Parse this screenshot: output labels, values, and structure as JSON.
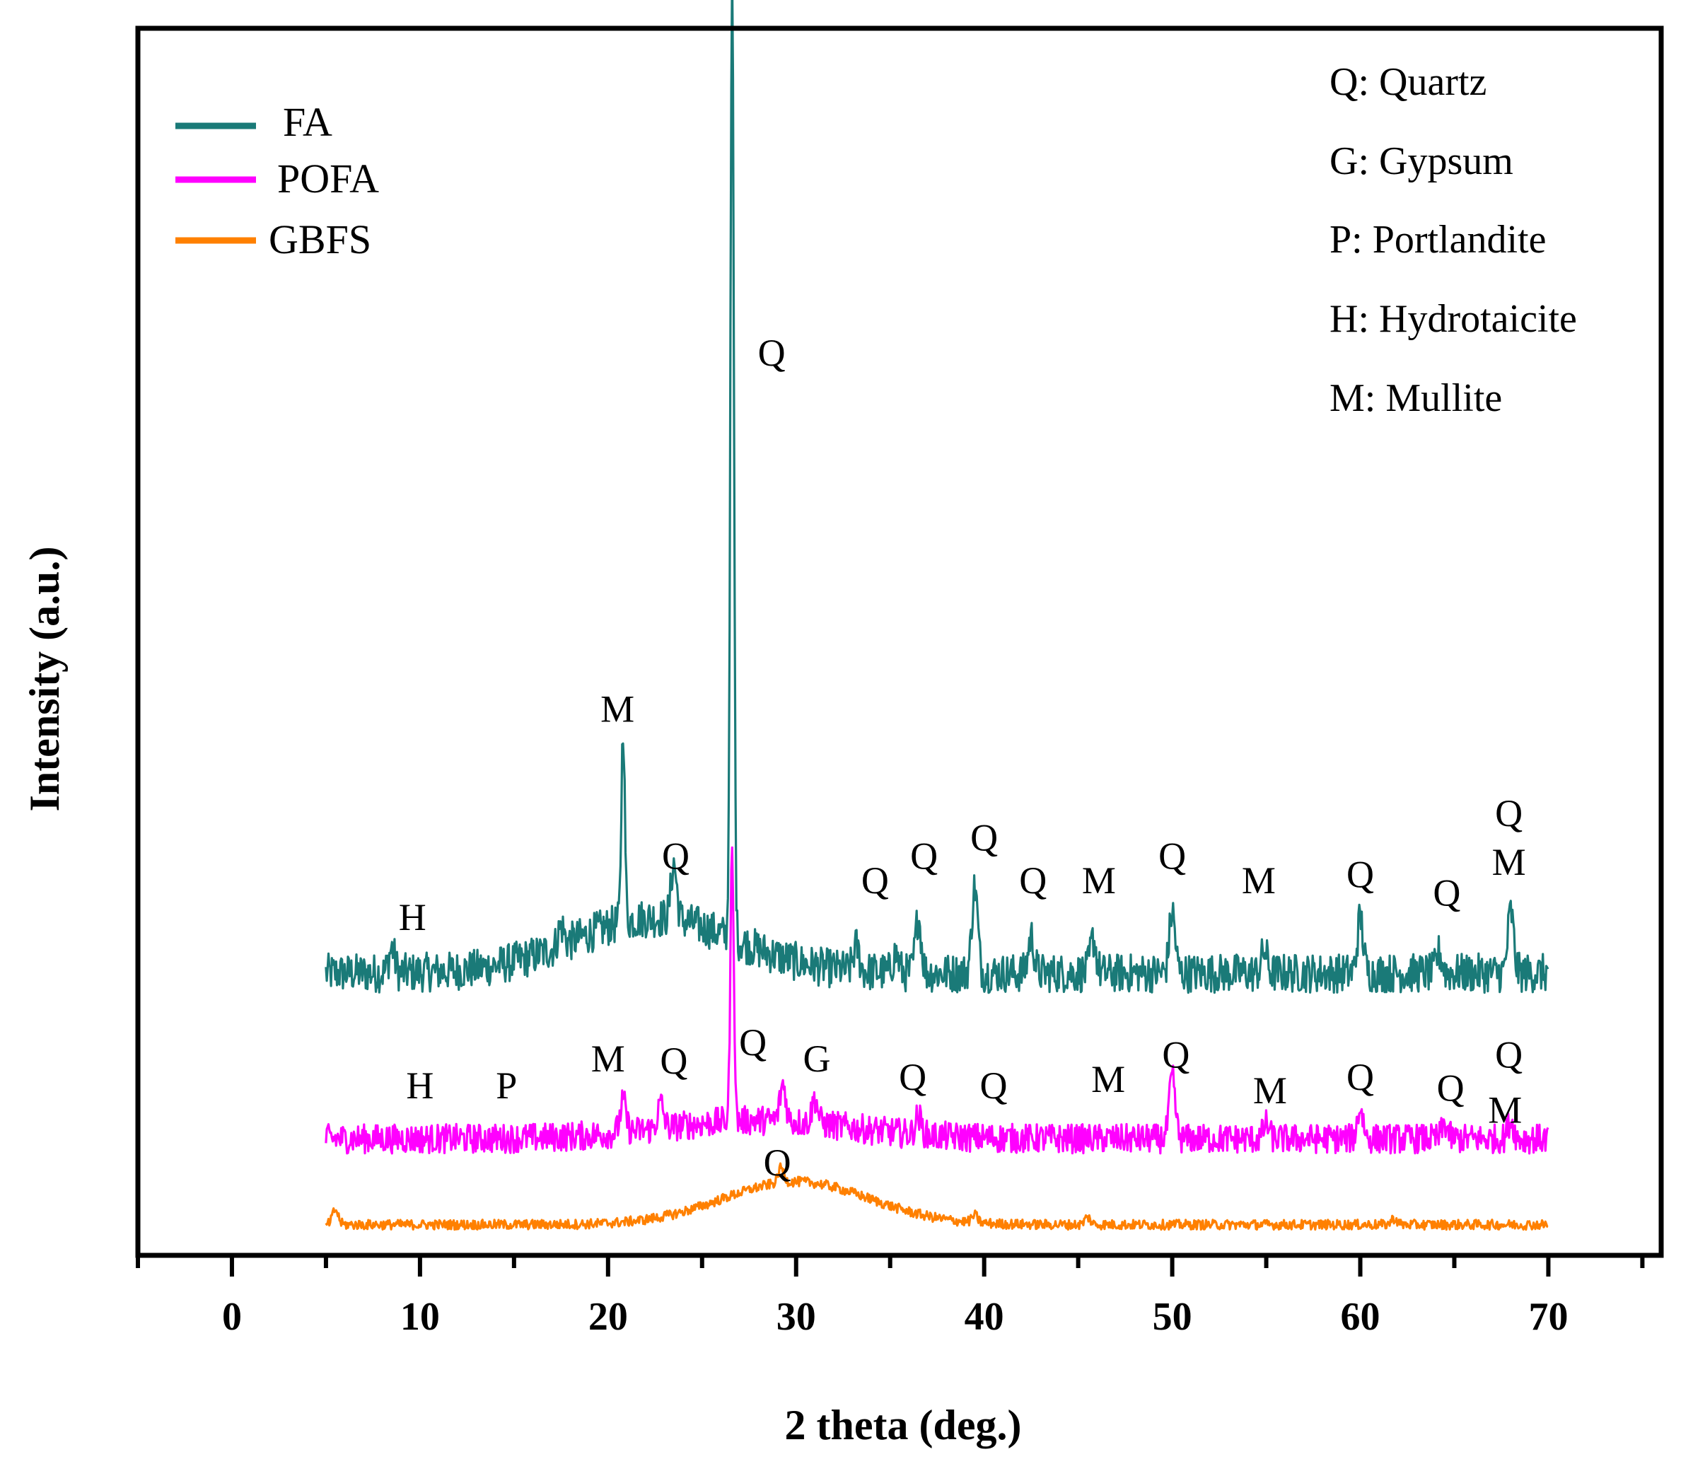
{
  "chart_data": {
    "type": "line",
    "title": "",
    "xlabel": "2 theta (deg.)",
    "ylabel": "Intensity (a.u.)",
    "xlim": [
      -5,
      76
    ],
    "ylim": [
      0,
      100
    ],
    "x_ticks": [
      "0",
      "10",
      "20",
      "30",
      "40",
      "50",
      "60",
      "70"
    ],
    "x_tick_values": [
      0,
      10,
      20,
      30,
      40,
      50,
      60,
      70
    ],
    "grid": false,
    "legend_position": "top-left",
    "series": [
      {
        "name": "FA",
        "color": "#1a7a78",
        "baseline": 23,
        "peaks": [
          {
            "x": 8.5,
            "h": 2.0
          },
          {
            "x": 17.5,
            "h": 1.6
          },
          {
            "x": 20.8,
            "h": 16.0
          },
          {
            "x": 23.5,
            "h": 4.5
          },
          {
            "x": 26.6,
            "h": 78.0
          },
          {
            "x": 33.2,
            "h": 2.0
          },
          {
            "x": 35.3,
            "h": 1.5
          },
          {
            "x": 36.5,
            "h": 4.5
          },
          {
            "x": 39.5,
            "h": 7.0
          },
          {
            "x": 42.5,
            "h": 3.0
          },
          {
            "x": 45.8,
            "h": 2.8
          },
          {
            "x": 50.0,
            "h": 5.0
          },
          {
            "x": 54.9,
            "h": 1.8
          },
          {
            "x": 60.0,
            "h": 4.5
          },
          {
            "x": 64.2,
            "h": 1.6
          },
          {
            "x": 68.0,
            "h": 5.0
          }
        ],
        "hump": {
          "center": 22.5,
          "width": 6,
          "height": 4.5
        },
        "noise": 1.6
      },
      {
        "name": "POFA",
        "color": "#ff00ff",
        "baseline": 9.5,
        "peaks": [
          {
            "x": 20.8,
            "h": 2.5
          },
          {
            "x": 22.8,
            "h": 2.0
          },
          {
            "x": 26.6,
            "h": 22.0
          },
          {
            "x": 29.3,
            "h": 3.0
          },
          {
            "x": 31.0,
            "h": 2.0
          },
          {
            "x": 36.5,
            "h": 1.5
          },
          {
            "x": 50.0,
            "h": 5.0
          },
          {
            "x": 55.0,
            "h": 1.2
          },
          {
            "x": 60.0,
            "h": 2.5
          },
          {
            "x": 64.5,
            "h": 1.2
          },
          {
            "x": 68.0,
            "h": 1.5
          }
        ],
        "hump": {
          "center": 28,
          "width": 7,
          "height": 1.5
        },
        "noise": 1.2
      },
      {
        "name": "GBFS",
        "color": "#ff8000",
        "baseline": 2.5,
        "peaks": [
          {
            "x": 5.5,
            "h": 1.2
          },
          {
            "x": 29.2,
            "h": 1.2
          },
          {
            "x": 39.5,
            "h": 0.6
          },
          {
            "x": 45.5,
            "h": 0.6
          },
          {
            "x": 61.8,
            "h": 0.5
          }
        ],
        "hump": {
          "center": 30,
          "width": 5.5,
          "height": 3.5
        },
        "noise": 0.4
      }
    ],
    "phase_key": [
      "Q: Quartz",
      "G: Gypsum",
      "P: Portlandite",
      "H: Hydrotaicite",
      "M: Mullite"
    ],
    "annotations": [
      {
        "text": "H",
        "x": 9.6,
        "y": 26.5
      },
      {
        "text": "M",
        "x": 20.5,
        "y": 43.5
      },
      {
        "text": "Q",
        "x": 23.6,
        "y": 31.5
      },
      {
        "text": "Q",
        "x": 28.7,
        "y": 72.5
      },
      {
        "text": "Q",
        "x": 34.2,
        "y": 29.5
      },
      {
        "text": "Q",
        "x": 36.8,
        "y": 31.5
      },
      {
        "text": "Q",
        "x": 40.0,
        "y": 33.0
      },
      {
        "text": "Q",
        "x": 42.6,
        "y": 29.5
      },
      {
        "text": "M",
        "x": 46.1,
        "y": 29.5
      },
      {
        "text": "Q",
        "x": 50.0,
        "y": 31.5
      },
      {
        "text": "M",
        "x": 54.6,
        "y": 29.5
      },
      {
        "text": "Q",
        "x": 60.0,
        "y": 30.0
      },
      {
        "text": "Q",
        "x": 64.6,
        "y": 28.5
      },
      {
        "text": "M",
        "x": 67.9,
        "y": 31.0
      },
      {
        "text": "Q",
        "x": 67.9,
        "y": 35.0
      },
      {
        "text": "H",
        "x": 10.0,
        "y": 12.8
      },
      {
        "text": "P",
        "x": 14.6,
        "y": 12.8
      },
      {
        "text": "M",
        "x": 20.0,
        "y": 15.0
      },
      {
        "text": "Q",
        "x": 23.5,
        "y": 14.8
      },
      {
        "text": "Q",
        "x": 27.7,
        "y": 16.3
      },
      {
        "text": "G",
        "x": 31.1,
        "y": 15.0
      },
      {
        "text": "Q",
        "x": 36.2,
        "y": 13.5
      },
      {
        "text": "Q",
        "x": 40.5,
        "y": 12.8
      },
      {
        "text": "M",
        "x": 46.6,
        "y": 13.3
      },
      {
        "text": "Q",
        "x": 50.2,
        "y": 15.3
      },
      {
        "text": "M",
        "x": 55.2,
        "y": 12.4
      },
      {
        "text": "Q",
        "x": 60.0,
        "y": 13.5
      },
      {
        "text": "Q",
        "x": 64.8,
        "y": 12.6
      },
      {
        "text": "M",
        "x": 67.7,
        "y": 10.8
      },
      {
        "text": "Q",
        "x": 67.9,
        "y": 15.3
      },
      {
        "text": "Q",
        "x": 29.0,
        "y": 6.5
      }
    ]
  }
}
